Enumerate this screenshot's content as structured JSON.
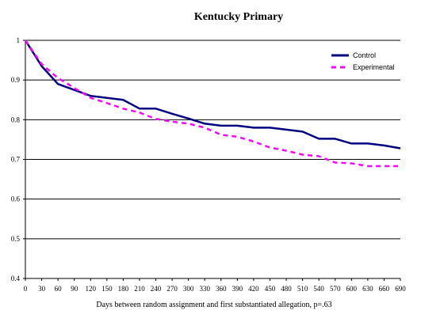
{
  "chart_data": {
    "type": "line",
    "title": "Kentucky Primary",
    "xlabel": "Days between random assignment and first substantiated allegation, p=.63",
    "ylabel": "",
    "xlim": [
      0,
      690
    ],
    "ylim": [
      0.4,
      1.0
    ],
    "x_ticks": [
      0,
      30,
      60,
      90,
      120,
      150,
      180,
      210,
      240,
      270,
      300,
      330,
      360,
      390,
      420,
      450,
      480,
      510,
      540,
      570,
      600,
      630,
      660,
      690
    ],
    "y_ticks": [
      0.4,
      0.5,
      0.6,
      0.7,
      0.8,
      0.9,
      1.0
    ],
    "y_tick_labels": [
      "0.4",
      "0.5",
      "0.6",
      "0.7",
      "0.8",
      "0.9",
      "1"
    ],
    "grid": "horizontal",
    "legend_position": "top-right",
    "series": [
      {
        "name": "Control",
        "color": "#000080",
        "style": "solid",
        "x": [
          0,
          30,
          60,
          90,
          120,
          150,
          180,
          210,
          240,
          270,
          300,
          330,
          360,
          390,
          420,
          450,
          480,
          510,
          540,
          570,
          600,
          630,
          660,
          690
        ],
        "values": [
          1.0,
          0.935,
          0.89,
          0.875,
          0.86,
          0.855,
          0.85,
          0.828,
          0.828,
          0.815,
          0.803,
          0.79,
          0.785,
          0.785,
          0.78,
          0.78,
          0.775,
          0.77,
          0.752,
          0.752,
          0.74,
          0.74,
          0.735,
          0.728
        ]
      },
      {
        "name": "Experimental",
        "color": "#FF00FF",
        "style": "dashed",
        "x": [
          0,
          30,
          60,
          90,
          120,
          150,
          180,
          210,
          240,
          270,
          300,
          330,
          360,
          390,
          420,
          450,
          480,
          510,
          540,
          570,
          600,
          630,
          660,
          690
        ],
        "values": [
          1.0,
          0.94,
          0.905,
          0.88,
          0.855,
          0.842,
          0.828,
          0.818,
          0.802,
          0.795,
          0.79,
          0.78,
          0.762,
          0.757,
          0.745,
          0.73,
          0.722,
          0.712,
          0.708,
          0.692,
          0.69,
          0.683,
          0.683,
          0.683
        ]
      }
    ]
  }
}
